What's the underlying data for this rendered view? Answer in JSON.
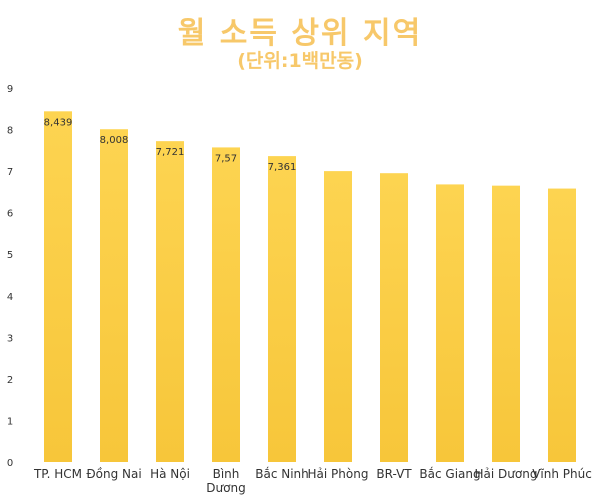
{
  "chart_data": {
    "type": "bar",
    "title": "월 소득 상위 지역",
    "subtitle": "(단위:1백만동)",
    "categories": [
      "TP. HCM",
      "Đồng Nai",
      "Hà Nội",
      "Bình Dương",
      "Bắc Ninh",
      "Hải Phòng",
      "BR-VT",
      "Bắc Giang",
      "Hải Dương",
      "Vĩnh Phúc"
    ],
    "values": [
      8.439,
      8.008,
      7.721,
      7.57,
      7.361,
      7.0,
      6.95,
      6.68,
      6.65,
      6.58
    ],
    "data_labels": [
      "8,439",
      "8,008",
      "7,721",
      "7,57",
      "7,361",
      "",
      "",
      "",
      "",
      ""
    ],
    "y_tick_labels": [
      "0",
      "1",
      "2",
      "3",
      "4",
      "5",
      "6",
      "7",
      "8",
      "9"
    ],
    "xlabel": "",
    "ylabel": "",
    "ylim": [
      0,
      9
    ],
    "grid": false,
    "legend": "none",
    "bar_color": "#f7c63a",
    "bar_color_light": "#fdd451",
    "title_color": "#f7c86a"
  }
}
